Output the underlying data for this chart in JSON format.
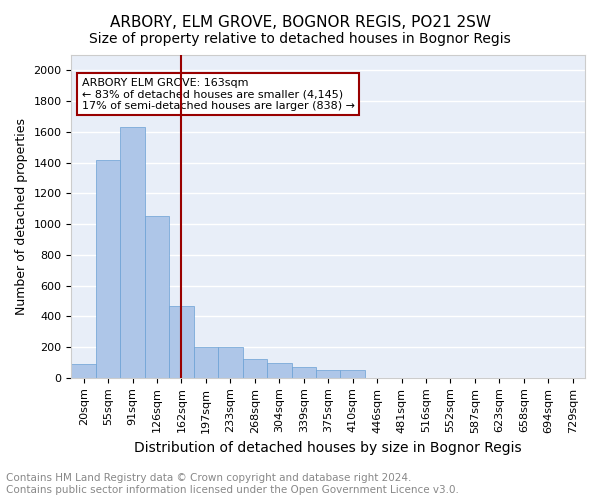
{
  "title": "ARBORY, ELM GROVE, BOGNOR REGIS, PO21 2SW",
  "subtitle": "Size of property relative to detached houses in Bognor Regis",
  "xlabel": "Distribution of detached houses by size in Bognor Regis",
  "ylabel": "Number of detached properties",
  "bins": [
    "20sqm",
    "55sqm",
    "91sqm",
    "126sqm",
    "162sqm",
    "197sqm",
    "233sqm",
    "268sqm",
    "304sqm",
    "339sqm",
    "375sqm",
    "410sqm",
    "446sqm",
    "481sqm",
    "516sqm",
    "552sqm",
    "587sqm",
    "623sqm",
    "658sqm",
    "694sqm",
    "729sqm"
  ],
  "values": [
    90,
    1420,
    1630,
    1050,
    470,
    200,
    200,
    120,
    95,
    70,
    50,
    50,
    0,
    0,
    0,
    0,
    0,
    0,
    0,
    0,
    0
  ],
  "bar_color": "#aec6e8",
  "bar_edge_color": "#6aa0d4",
  "vline_x_index": 4,
  "vline_color": "#990000",
  "annotation_text": "ARBORY ELM GROVE: 163sqm\n← 83% of detached houses are smaller (4,145)\n17% of semi-detached houses are larger (838) →",
  "annotation_box_color": "white",
  "annotation_box_edge_color": "#990000",
  "ylim": [
    0,
    2100
  ],
  "yticks": [
    0,
    200,
    400,
    600,
    800,
    1000,
    1200,
    1400,
    1600,
    1800,
    2000
  ],
  "background_color": "#e8eef8",
  "grid_color": "white",
  "footer_line1": "Contains HM Land Registry data © Crown copyright and database right 2024.",
  "footer_line2": "Contains public sector information licensed under the Open Government Licence v3.0.",
  "title_fontsize": 11,
  "subtitle_fontsize": 10,
  "xlabel_fontsize": 10,
  "ylabel_fontsize": 9,
  "tick_fontsize": 8,
  "annotation_fontsize": 8,
  "footer_fontsize": 7.5
}
